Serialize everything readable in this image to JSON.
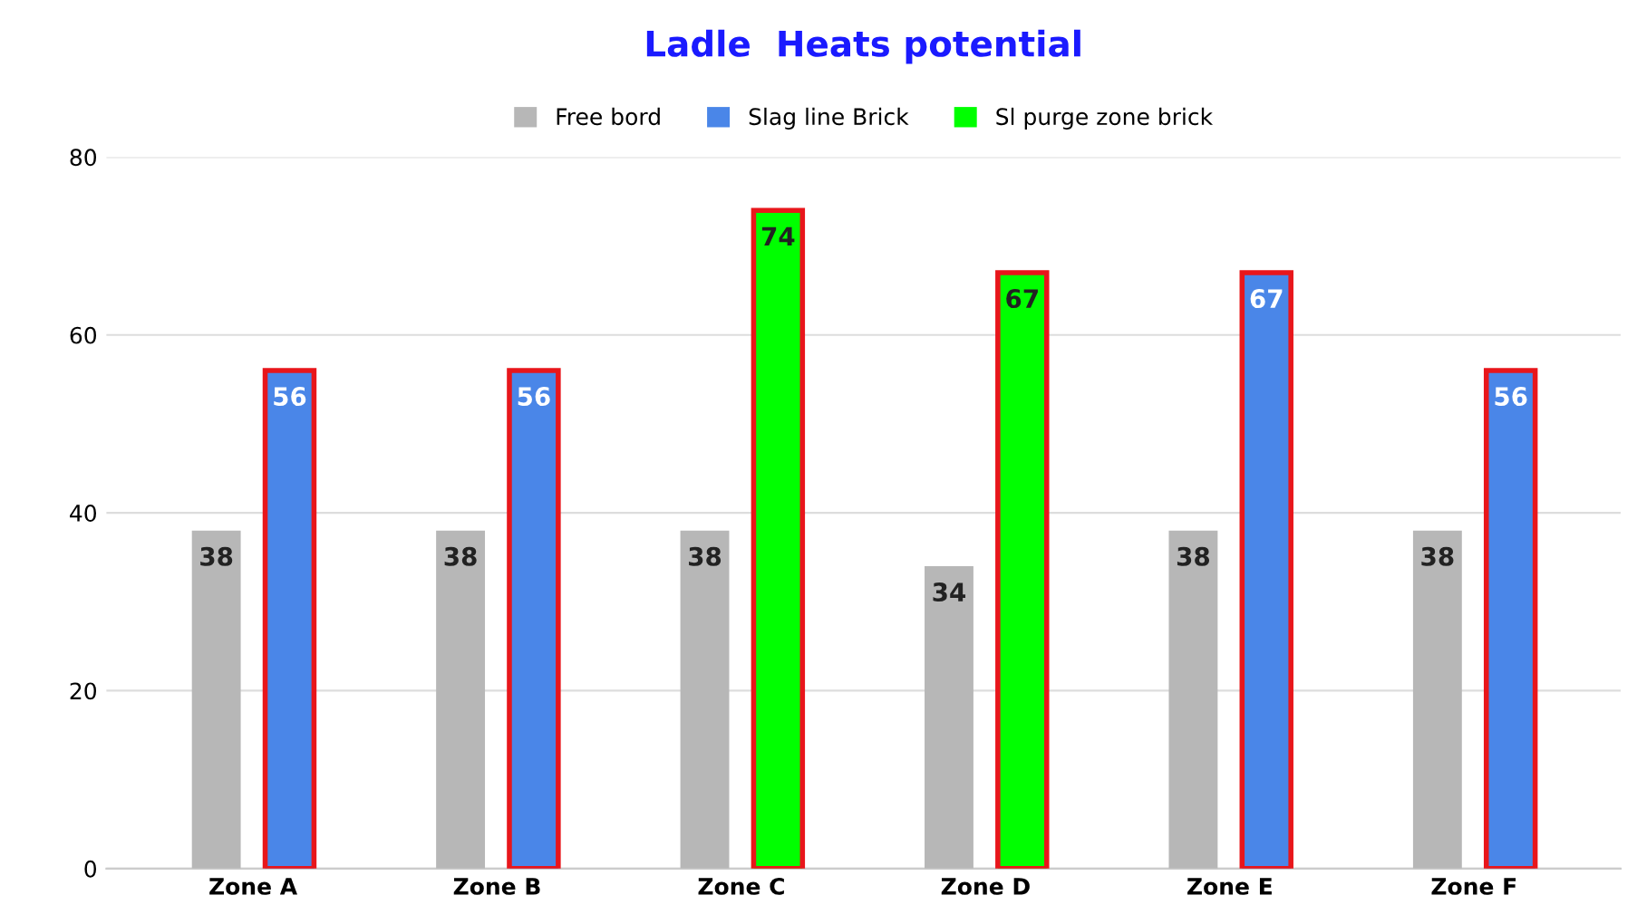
{
  "chart_data": {
    "type": "bar",
    "title": "Ladle  Heats potential",
    "categories": [
      "Zone A",
      "Zone B",
      "Zone C",
      "Zone D",
      "Zone E",
      "Zone F"
    ],
    "series": [
      {
        "name": "Free bord",
        "color": "#b7b7b7",
        "values": [
          38,
          38,
          38,
          34,
          38,
          38
        ]
      },
      {
        "name": "Slag line Brick",
        "color": "#4a86e8",
        "values": [
          56,
          56,
          null,
          null,
          67,
          56
        ]
      },
      {
        "name": "Sl purge zone brick",
        "color": "#00ff00",
        "values": [
          null,
          null,
          74,
          67,
          null,
          null
        ]
      }
    ],
    "ylim": [
      0,
      80
    ],
    "yticks": [
      0,
      20,
      40,
      60,
      80
    ],
    "grid": "y",
    "legend": "top",
    "data_labels": true
  }
}
